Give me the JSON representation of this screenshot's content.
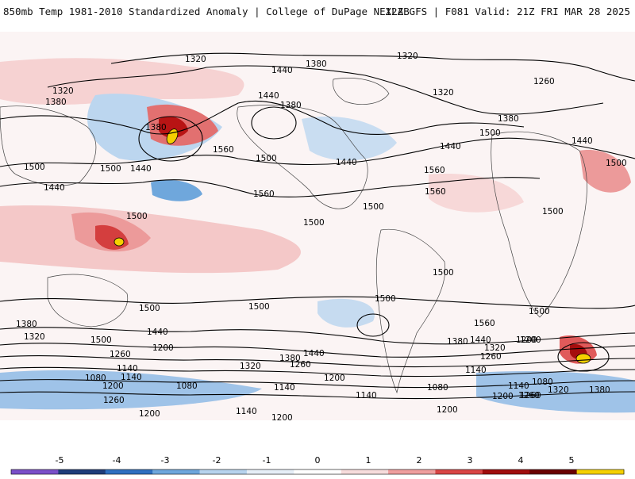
{
  "header": {
    "title_left": "850mb Temp 1981-2010 Standardized Anomaly | College of DuPage NEXLAB",
    "title_right": "12Z GFS | F081 Valid: 21Z FRI MAR 28 2025"
  },
  "map": {
    "field": "850mb Temp Standardized Anomaly",
    "contour_labels": [
      {
        "id": "lbl-1320-a",
        "text": "1320"
      },
      {
        "id": "lbl-1380-a",
        "text": "1380"
      },
      {
        "id": "lbl-1320-b",
        "text": "1320"
      },
      {
        "id": "lbl-1440-a",
        "text": "1440"
      },
      {
        "id": "lbl-1260-a",
        "text": "1260"
      },
      {
        "id": "lbl-1320-c",
        "text": "1320"
      },
      {
        "id": "lbl-1380-b",
        "text": "1380"
      },
      {
        "id": "lbl-1380-c",
        "text": "1380"
      },
      {
        "id": "lbl-1440-b",
        "text": "1440"
      },
      {
        "id": "lbl-1380-d",
        "text": "1380"
      },
      {
        "id": "lbl-1320-d",
        "text": "1320"
      },
      {
        "id": "lbl-1380-e",
        "text": "1380"
      },
      {
        "id": "lbl-1500-a",
        "text": "1500"
      },
      {
        "id": "lbl-1560-a",
        "text": "1560"
      },
      {
        "id": "lbl-1440-c",
        "text": "1440"
      },
      {
        "id": "lbl-1440-d",
        "text": "1440"
      },
      {
        "id": "lbl-1500-b",
        "text": "1500"
      },
      {
        "id": "lbl-1500-c",
        "text": "1500"
      },
      {
        "id": "lbl-1500-d",
        "text": "1500"
      },
      {
        "id": "lbl-1440-e",
        "text": "1440"
      },
      {
        "id": "lbl-1500-e",
        "text": "1500"
      },
      {
        "id": "lbl-1440-f",
        "text": "1440"
      },
      {
        "id": "lbl-1560-b",
        "text": "1560"
      },
      {
        "id": "lbl-1560-c",
        "text": "1560"
      },
      {
        "id": "lbl-1440-g",
        "text": "1440"
      },
      {
        "id": "lbl-1560-d",
        "text": "1560"
      },
      {
        "id": "lbl-1500-f",
        "text": "1500"
      },
      {
        "id": "lbl-1500-g",
        "text": "1500"
      },
      {
        "id": "lbl-1500-h",
        "text": "1500"
      },
      {
        "id": "lbl-1500-i",
        "text": "1500"
      },
      {
        "id": "lbl-1500-j",
        "text": "1500"
      },
      {
        "id": "lbl-1500-k",
        "text": "1500"
      },
      {
        "id": "lbl-1500-l",
        "text": "1500"
      },
      {
        "id": "lbl-1500-m",
        "text": "1500"
      },
      {
        "id": "lbl-1500-n",
        "text": "1500"
      },
      {
        "id": "lbl-1500-o",
        "text": "1500"
      },
      {
        "id": "lbl-1560-e",
        "text": "1560"
      },
      {
        "id": "lbl-1380-f",
        "text": "1380"
      },
      {
        "id": "lbl-1320-e",
        "text": "1320"
      },
      {
        "id": "lbl-1440-h",
        "text": "1440"
      },
      {
        "id": "lbl-1260-b",
        "text": "1260"
      },
      {
        "id": "lbl-1200-a",
        "text": "1200"
      },
      {
        "id": "lbl-1140-a",
        "text": "1140"
      },
      {
        "id": "lbl-1140-b",
        "text": "1140"
      },
      {
        "id": "lbl-1080-a",
        "text": "1080"
      },
      {
        "id": "lbl-1200-b",
        "text": "1200"
      },
      {
        "id": "lbl-1260-c",
        "text": "1260"
      },
      {
        "id": "lbl-1080-b",
        "text": "1080"
      },
      {
        "id": "lbl-1200-c",
        "text": "1200"
      },
      {
        "id": "lbl-1320-f",
        "text": "1320"
      },
      {
        "id": "lbl-1380-g",
        "text": "1380"
      },
      {
        "id": "lbl-1440-i",
        "text": "1440"
      },
      {
        "id": "lbl-1260-d",
        "text": "1260"
      },
      {
        "id": "lbl-1200-d",
        "text": "1200"
      },
      {
        "id": "lbl-1140-c",
        "text": "1140"
      },
      {
        "id": "lbl-1140-d",
        "text": "1140"
      },
      {
        "id": "lbl-1200-e",
        "text": "1200"
      },
      {
        "id": "lbl-1380-h",
        "text": "1380"
      },
      {
        "id": "lbl-1440-j",
        "text": "1440"
      },
      {
        "id": "lbl-1320-g",
        "text": "1320"
      },
      {
        "id": "lbl-1200-f",
        "text": "1200"
      },
      {
        "id": "lbl-1260-e",
        "text": "1260"
      },
      {
        "id": "lbl-1140-e",
        "text": "1140"
      },
      {
        "id": "lbl-1080-c",
        "text": "1080"
      },
      {
        "id": "lbl-1200-g",
        "text": "1200"
      },
      {
        "id": "lbl-1140-f",
        "text": "1140"
      },
      {
        "id": "lbl-1080-d",
        "text": "1080"
      },
      {
        "id": "lbl-1260-f",
        "text": "1260"
      },
      {
        "id": "lbl-1320-h",
        "text": "1320"
      },
      {
        "id": "lbl-1380-i",
        "text": "1380"
      },
      {
        "id": "lbl-1200-h",
        "text": "1200"
      },
      {
        "id": "lbl-1140-g",
        "text": "1140"
      },
      {
        "id": "lbl-1260-g",
        "text": "1260"
      },
      {
        "id": "lbl-1200-i",
        "text": "1200"
      }
    ]
  },
  "colorbar": {
    "ticks": [
      "-5",
      "-4",
      "-3",
      "-2",
      "-1",
      "0",
      "1",
      "2",
      "3",
      "4",
      "5"
    ],
    "colors": [
      "#7b4fc9",
      "#1f3d7a",
      "#2f6fc0",
      "#6ea6dc",
      "#b7d3ee",
      "#e6eef7",
      "#ffffff",
      "#f7dcdc",
      "#ef9e9e",
      "#d94545",
      "#a00d0d",
      "#6b0000",
      "#f5d000"
    ]
  }
}
